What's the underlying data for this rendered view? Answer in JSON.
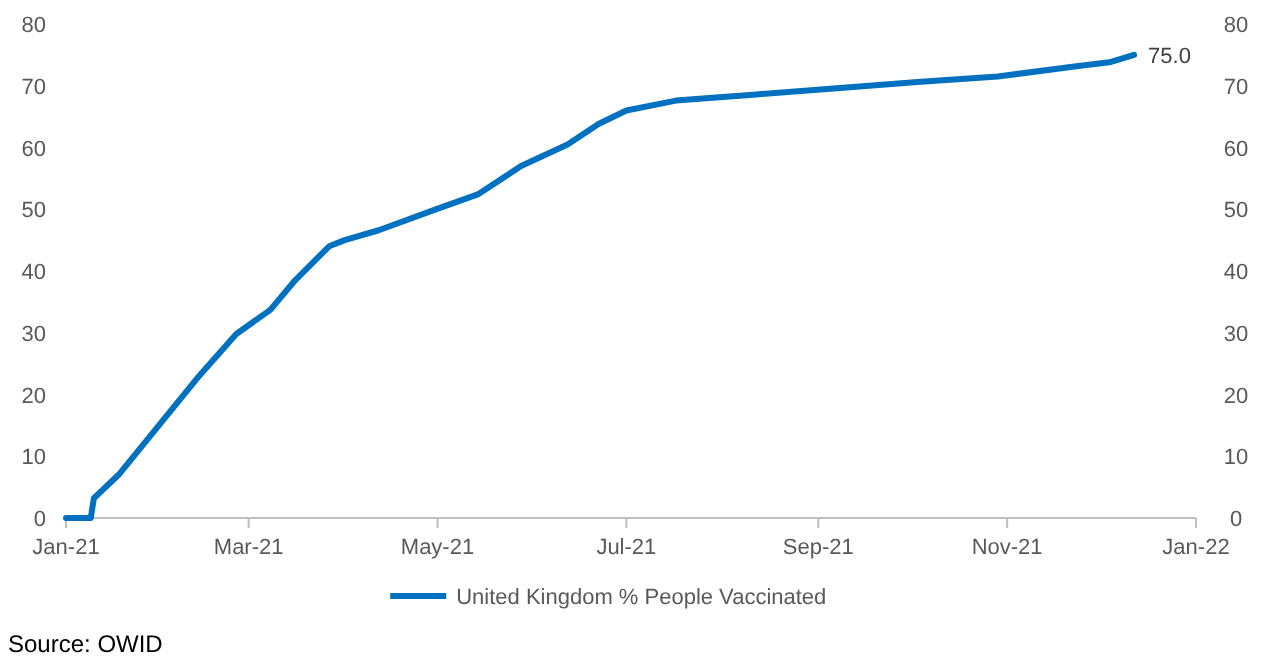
{
  "chart_data": {
    "type": "line",
    "x": [
      "2021-01-01",
      "2021-01-09",
      "2021-01-10",
      "2021-01-18",
      "2021-01-31",
      "2021-02-13",
      "2021-02-25",
      "2021-03-08",
      "2021-03-16",
      "2021-03-21",
      "2021-03-27",
      "2021-04-01",
      "2021-04-12",
      "2021-04-30",
      "2021-05-14",
      "2021-05-28",
      "2021-06-12",
      "2021-06-22",
      "2021-07-01",
      "2021-07-17",
      "2021-08-12",
      "2021-09-07",
      "2021-10-03",
      "2021-10-29",
      "2021-11-24",
      "2021-12-04",
      "2021-12-12"
    ],
    "series": [
      {
        "name": "United Kingdom % People Vaccinated",
        "color": "#0070c0",
        "values": [
          0,
          0,
          3.2,
          7,
          15,
          23,
          29.8,
          33.7,
          38.5,
          41,
          44,
          45,
          46.6,
          49.9,
          52.4,
          57,
          60.5,
          63.8,
          66,
          67.6,
          68.6,
          69.6,
          70.6,
          71.5,
          73.2,
          73.8,
          75.0
        ],
        "value_labels": [
          null,
          null,
          null,
          null,
          null,
          null,
          null,
          null,
          null,
          null,
          null,
          null,
          null,
          null,
          null,
          null,
          null,
          null,
          null,
          null,
          null,
          null,
          null,
          null,
          null,
          null,
          "75.0"
        ]
      }
    ],
    "xlim": [
      "2021-01-01",
      "2022-01-01"
    ],
    "xticks": [
      {
        "value": "2021-01-01",
        "label": "Jan-21"
      },
      {
        "value": "2021-03-01",
        "label": "Mar-21"
      },
      {
        "value": "2021-05-01",
        "label": "May-21"
      },
      {
        "value": "2021-07-01",
        "label": "Jul-21"
      },
      {
        "value": "2021-09-01",
        "label": "Sep-21"
      },
      {
        "value": "2021-11-01",
        "label": "Nov-21"
      },
      {
        "value": "2022-01-01",
        "label": "Jan-22"
      }
    ],
    "ylim": [
      0,
      80
    ],
    "yticks": [
      0,
      10,
      20,
      30,
      40,
      50,
      60,
      70,
      80
    ],
    "y2lim": [
      0,
      80
    ],
    "y2ticks": [
      0,
      10,
      20,
      30,
      40,
      50,
      60,
      70,
      80
    ],
    "grid": false,
    "legend": "bottom",
    "marker": "none",
    "line_style": "solid",
    "annotations": [
      "Source: OWID"
    ]
  }
}
